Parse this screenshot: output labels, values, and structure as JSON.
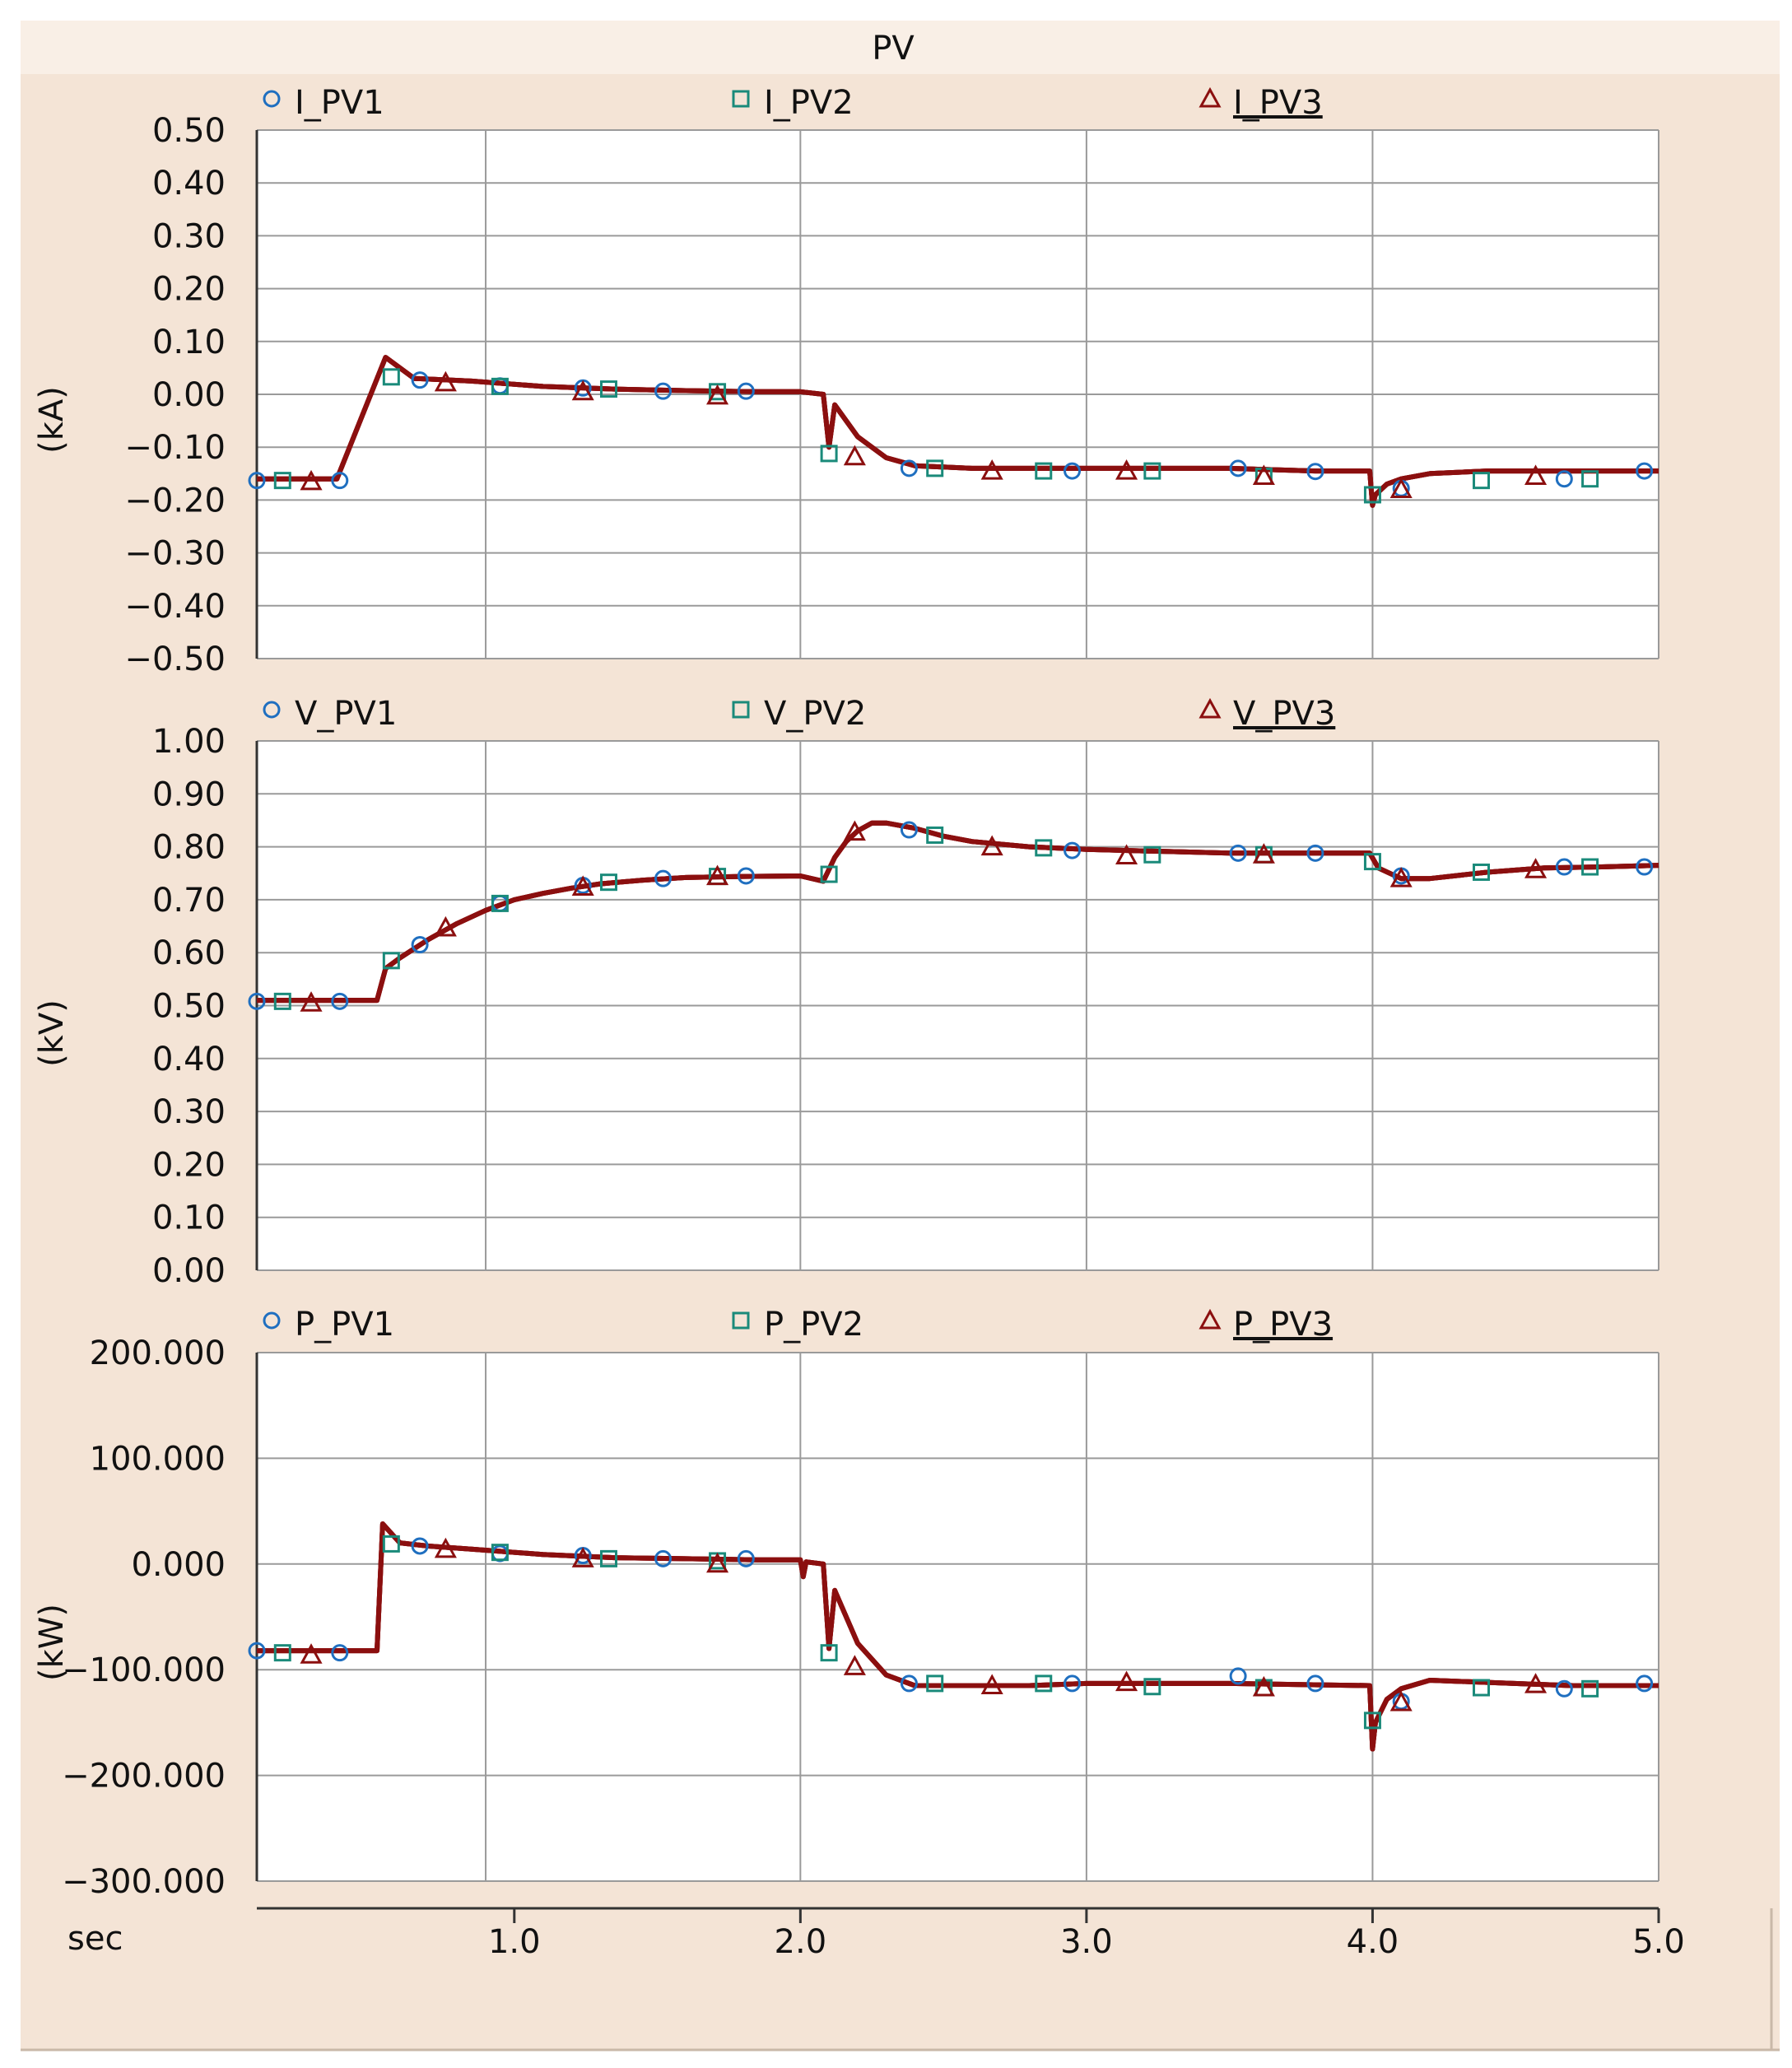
{
  "window": {
    "title": "PV",
    "x_axis_unit": "sec",
    "background": "#f4e4d6",
    "title_bar_color": "#f9efe6",
    "plot_background": "#ffffff",
    "grid_color": "#9a9a9a",
    "line_color": "#8b0f0f"
  },
  "chart_data": [
    {
      "type": "line",
      "id": "current",
      "ylabel": "(kA)",
      "ylim": [
        -0.5,
        0.5
      ],
      "yticks": [
        0.5,
        0.4,
        0.3,
        0.2,
        0.1,
        0.0,
        -0.1,
        -0.2,
        -0.3,
        -0.4,
        -0.5
      ],
      "ytick_labels": [
        "0.50",
        "0.40",
        "0.30",
        "0.20",
        "0.10",
        "0.00",
        "−0.10",
        "−0.20",
        "−0.30",
        "−0.40",
        "−0.50"
      ],
      "xlim": [
        0.1,
        5.0
      ],
      "grid": true,
      "legend_position": "top",
      "series": [
        {
          "name": "I_PV1",
          "marker": "circle",
          "color": "#1f6fc0",
          "x": [
            0.1,
            0.38,
            0.55,
            0.65,
            0.85,
            1.1,
            1.35,
            1.6,
            1.85,
            2.0,
            2.08,
            2.1,
            2.12,
            2.2,
            2.3,
            2.4,
            2.6,
            2.8,
            3.0,
            3.5,
            3.8,
            3.99,
            4.0,
            4.01,
            4.05,
            4.1,
            4.2,
            4.4,
            4.7,
            5.0
          ],
          "y": [
            -0.16,
            -0.16,
            0.07,
            0.03,
            0.025,
            0.015,
            0.01,
            0.007,
            0.005,
            0.005,
            0.0,
            -0.1,
            -0.02,
            -0.08,
            -0.12,
            -0.135,
            -0.14,
            -0.14,
            -0.14,
            -0.14,
            -0.145,
            -0.145,
            -0.21,
            -0.19,
            -0.17,
            -0.16,
            -0.15,
            -0.145,
            -0.145,
            -0.145
          ],
          "marker_x": [
            0.1,
            0.39,
            0.67,
            0.95,
            1.24,
            1.52,
            1.81,
            2.38,
            2.95,
            3.53,
            3.8,
            4.1,
            4.67,
            4.95
          ],
          "marker_y": [
            -0.163,
            -0.163,
            0.027,
            0.016,
            0.012,
            0.006,
            0.006,
            -0.14,
            -0.145,
            -0.14,
            -0.146,
            -0.178,
            -0.16,
            -0.145
          ]
        },
        {
          "name": "I_PV2",
          "marker": "square",
          "color": "#1a8a7a",
          "x": [
            0.1,
            0.38,
            0.55,
            0.65,
            0.85,
            1.1,
            1.35,
            1.6,
            1.85,
            2.0,
            2.08,
            2.1,
            2.12,
            2.2,
            2.3,
            2.4,
            2.6,
            2.8,
            3.0,
            3.5,
            3.8,
            3.99,
            4.0,
            4.01,
            4.05,
            4.1,
            4.2,
            4.4,
            4.7,
            5.0
          ],
          "y": [
            -0.16,
            -0.16,
            0.07,
            0.03,
            0.025,
            0.015,
            0.01,
            0.007,
            0.005,
            0.005,
            0.0,
            -0.1,
            -0.02,
            -0.08,
            -0.12,
            -0.135,
            -0.14,
            -0.14,
            -0.14,
            -0.14,
            -0.145,
            -0.145,
            -0.21,
            -0.19,
            -0.17,
            -0.16,
            -0.15,
            -0.145,
            -0.145,
            -0.145
          ],
          "marker_x": [
            0.19,
            0.57,
            0.95,
            1.33,
            1.71,
            2.1,
            2.47,
            2.85,
            3.23,
            3.62,
            4.0,
            4.38,
            4.76
          ],
          "marker_y": [
            -0.163,
            0.033,
            0.015,
            0.01,
            0.005,
            -0.112,
            -0.14,
            -0.145,
            -0.145,
            -0.155,
            -0.19,
            -0.163,
            -0.16
          ]
        },
        {
          "name": "I_PV3",
          "marker": "triangle",
          "color": "#8b0f0f",
          "x": [
            0.1,
            0.38,
            0.55,
            0.65,
            0.85,
            1.1,
            1.35,
            1.6,
            1.85,
            2.0,
            2.08,
            2.1,
            2.12,
            2.2,
            2.3,
            2.4,
            2.6,
            2.8,
            3.0,
            3.5,
            3.8,
            3.99,
            4.0,
            4.01,
            4.05,
            4.1,
            4.2,
            4.4,
            4.7,
            5.0
          ],
          "y": [
            -0.16,
            -0.16,
            0.07,
            0.03,
            0.025,
            0.015,
            0.01,
            0.007,
            0.005,
            0.005,
            0.0,
            -0.1,
            -0.02,
            -0.08,
            -0.12,
            -0.135,
            -0.14,
            -0.14,
            -0.14,
            -0.14,
            -0.145,
            -0.145,
            -0.21,
            -0.19,
            -0.17,
            -0.16,
            -0.15,
            -0.145,
            -0.145,
            -0.145
          ],
          "marker_x": [
            0.29,
            0.76,
            1.24,
            1.71,
            2.19,
            2.67,
            3.14,
            3.62,
            4.1,
            4.57
          ],
          "marker_y": [
            -0.165,
            0.022,
            0.005,
            -0.003,
            -0.118,
            -0.145,
            -0.145,
            -0.155,
            -0.18,
            -0.155
          ]
        }
      ]
    },
    {
      "type": "line",
      "id": "voltage",
      "ylabel": "(kV)",
      "ylim": [
        0.0,
        1.0
      ],
      "yticks": [
        1.0,
        0.9,
        0.8,
        0.7,
        0.6,
        0.5,
        0.4,
        0.3,
        0.2,
        0.1,
        0.0
      ],
      "ytick_labels": [
        "1.00",
        "0.90",
        "0.80",
        "0.70",
        "0.60",
        "0.50",
        "0.40",
        "0.30",
        "0.20",
        "0.10",
        "0.00"
      ],
      "xlim": [
        0.1,
        5.0
      ],
      "grid": true,
      "legend_position": "top",
      "series": [
        {
          "name": "V_PV1",
          "marker": "circle",
          "color": "#1f6fc0",
          "x": [
            0.1,
            0.52,
            0.55,
            0.6,
            0.7,
            0.8,
            0.9,
            1.0,
            1.1,
            1.2,
            1.3,
            1.45,
            1.6,
            1.8,
            2.0,
            2.08,
            2.12,
            2.16,
            2.2,
            2.25,
            2.3,
            2.4,
            2.5,
            2.6,
            2.8,
            3.0,
            3.5,
            3.99,
            4.02,
            4.1,
            4.2,
            4.4,
            4.6,
            4.8,
            5.0
          ],
          "y": [
            0.51,
            0.51,
            0.57,
            0.59,
            0.625,
            0.655,
            0.68,
            0.7,
            0.712,
            0.722,
            0.73,
            0.737,
            0.742,
            0.744,
            0.745,
            0.735,
            0.78,
            0.81,
            0.83,
            0.845,
            0.845,
            0.835,
            0.82,
            0.81,
            0.8,
            0.795,
            0.788,
            0.788,
            0.76,
            0.74,
            0.74,
            0.752,
            0.76,
            0.762,
            0.765
          ],
          "marker_x": [
            0.1,
            0.39,
            0.67,
            0.95,
            1.24,
            1.52,
            1.81,
            2.38,
            2.95,
            3.53,
            3.8,
            4.1,
            4.67,
            4.95
          ],
          "marker_y": [
            0.508,
            0.508,
            0.615,
            0.693,
            0.727,
            0.74,
            0.745,
            0.832,
            0.793,
            0.788,
            0.788,
            0.745,
            0.762,
            0.762
          ]
        },
        {
          "name": "V_PV2",
          "marker": "square",
          "color": "#1a8a7a",
          "x": [
            0.1,
            0.52,
            0.55,
            0.6,
            0.7,
            0.8,
            0.9,
            1.0,
            1.1,
            1.2,
            1.3,
            1.45,
            1.6,
            1.8,
            2.0,
            2.08,
            2.12,
            2.16,
            2.2,
            2.25,
            2.3,
            2.4,
            2.5,
            2.6,
            2.8,
            3.0,
            3.5,
            3.99,
            4.02,
            4.1,
            4.2,
            4.4,
            4.6,
            4.8,
            5.0
          ],
          "y": [
            0.51,
            0.51,
            0.57,
            0.59,
            0.625,
            0.655,
            0.68,
            0.7,
            0.712,
            0.722,
            0.73,
            0.737,
            0.742,
            0.744,
            0.745,
            0.735,
            0.78,
            0.81,
            0.83,
            0.845,
            0.845,
            0.835,
            0.82,
            0.81,
            0.8,
            0.795,
            0.788,
            0.788,
            0.76,
            0.74,
            0.74,
            0.752,
            0.76,
            0.762,
            0.765
          ],
          "marker_x": [
            0.19,
            0.57,
            0.95,
            1.33,
            1.71,
            2.1,
            2.47,
            2.85,
            3.23,
            3.62,
            4.0,
            4.38,
            4.76
          ],
          "marker_y": [
            0.508,
            0.585,
            0.693,
            0.733,
            0.744,
            0.748,
            0.822,
            0.798,
            0.785,
            0.785,
            0.772,
            0.752,
            0.762
          ]
        },
        {
          "name": "V_PV3",
          "marker": "triangle",
          "color": "#8b0f0f",
          "x": [
            0.1,
            0.52,
            0.55,
            0.6,
            0.7,
            0.8,
            0.9,
            1.0,
            1.1,
            1.2,
            1.3,
            1.45,
            1.6,
            1.8,
            2.0,
            2.08,
            2.12,
            2.16,
            2.2,
            2.25,
            2.3,
            2.4,
            2.5,
            2.6,
            2.8,
            3.0,
            3.5,
            3.99,
            4.02,
            4.1,
            4.2,
            4.4,
            4.6,
            4.8,
            5.0
          ],
          "y": [
            0.51,
            0.51,
            0.57,
            0.59,
            0.625,
            0.655,
            0.68,
            0.7,
            0.712,
            0.722,
            0.73,
            0.737,
            0.742,
            0.744,
            0.745,
            0.735,
            0.78,
            0.81,
            0.83,
            0.845,
            0.845,
            0.835,
            0.82,
            0.81,
            0.8,
            0.795,
            0.788,
            0.788,
            0.76,
            0.74,
            0.74,
            0.752,
            0.76,
            0.762,
            0.765
          ],
          "marker_x": [
            0.29,
            0.76,
            1.24,
            1.71,
            2.19,
            2.67,
            3.14,
            3.62,
            4.1,
            4.57
          ],
          "marker_y": [
            0.505,
            0.647,
            0.724,
            0.744,
            0.828,
            0.8,
            0.783,
            0.785,
            0.74,
            0.757
          ]
        }
      ]
    },
    {
      "type": "line",
      "id": "power",
      "ylabel": "(kW)",
      "ylim": [
        -300.0,
        200.0
      ],
      "yticks": [
        200.0,
        100.0,
        0.0,
        -100.0,
        -200.0,
        -300.0
      ],
      "ytick_labels": [
        "200.000",
        "100.000",
        "0.000",
        "−100.000",
        "−200.000",
        "−300.000"
      ],
      "xlim": [
        0.1,
        5.0
      ],
      "grid": true,
      "legend_position": "top",
      "series": [
        {
          "name": "P_PV1",
          "marker": "circle",
          "color": "#1f6fc0",
          "x": [
            0.1,
            0.52,
            0.54,
            0.6,
            0.7,
            0.85,
            1.1,
            1.35,
            1.6,
            1.85,
            2.0,
            2.01,
            2.02,
            2.08,
            2.1,
            2.12,
            2.2,
            2.3,
            2.4,
            2.6,
            2.8,
            3.0,
            3.5,
            3.99,
            4.0,
            4.01,
            4.05,
            4.1,
            4.2,
            4.4,
            4.7,
            5.0
          ],
          "y": [
            -82,
            -82,
            38,
            20,
            17,
            14,
            9,
            6,
            5,
            4,
            4,
            -12,
            2,
            0,
            -80,
            -25,
            -75,
            -105,
            -115,
            -115,
            -115,
            -113,
            -113,
            -115,
            -175,
            -150,
            -128,
            -118,
            -110,
            -112,
            -115,
            -115
          ],
          "marker_x": [
            0.1,
            0.39,
            0.67,
            0.95,
            1.24,
            1.52,
            1.81,
            2.38,
            2.95,
            3.53,
            3.8,
            4.1,
            4.67,
            4.95
          ],
          "marker_y": [
            -82,
            -84,
            17,
            10,
            8,
            5,
            5,
            -113,
            -113,
            -106,
            -113,
            -130,
            -118,
            -113
          ]
        },
        {
          "name": "P_PV2",
          "marker": "square",
          "color": "#1a8a7a",
          "x": [
            0.1,
            0.52,
            0.54,
            0.6,
            0.7,
            0.85,
            1.1,
            1.35,
            1.6,
            1.85,
            2.0,
            2.01,
            2.02,
            2.08,
            2.1,
            2.12,
            2.2,
            2.3,
            2.4,
            2.6,
            2.8,
            3.0,
            3.5,
            3.99,
            4.0,
            4.01,
            4.05,
            4.1,
            4.2,
            4.4,
            4.7,
            5.0
          ],
          "y": [
            -82,
            -82,
            38,
            20,
            17,
            14,
            9,
            6,
            5,
            4,
            4,
            -12,
            2,
            0,
            -80,
            -25,
            -75,
            -105,
            -115,
            -115,
            -115,
            -113,
            -113,
            -115,
            -175,
            -150,
            -128,
            -118,
            -110,
            -112,
            -115,
            -115
          ],
          "marker_x": [
            0.19,
            0.57,
            0.95,
            1.33,
            1.71,
            2.1,
            2.47,
            2.85,
            3.23,
            3.62,
            4.0,
            4.38,
            4.76
          ],
          "marker_y": [
            -84,
            19,
            11,
            5,
            3,
            -84,
            -113,
            -113,
            -116,
            -117,
            -148,
            -117,
            -118
          ]
        },
        {
          "name": "P_PV3",
          "marker": "triangle",
          "color": "#8b0f0f",
          "x": [
            0.1,
            0.52,
            0.54,
            0.6,
            0.7,
            0.85,
            1.1,
            1.35,
            1.6,
            1.85,
            2.0,
            2.01,
            2.02,
            2.08,
            2.1,
            2.12,
            2.2,
            2.3,
            2.4,
            2.6,
            2.8,
            3.0,
            3.5,
            3.99,
            4.0,
            4.01,
            4.05,
            4.1,
            4.2,
            4.4,
            4.7,
            5.0
          ],
          "y": [
            -82,
            -82,
            38,
            20,
            17,
            14,
            9,
            6,
            5,
            4,
            4,
            -12,
            2,
            0,
            -80,
            -25,
            -75,
            -105,
            -115,
            -115,
            -115,
            -113,
            -113,
            -115,
            -175,
            -150,
            -128,
            -118,
            -110,
            -112,
            -115,
            -115
          ],
          "marker_x": [
            0.29,
            0.76,
            1.24,
            1.71,
            2.19,
            2.67,
            3.14,
            3.62,
            4.1,
            4.57
          ],
          "marker_y": [
            -86,
            14,
            5,
            0,
            -97,
            -115,
            -112,
            -117,
            -131,
            -114
          ]
        }
      ]
    }
  ],
  "x_axis": {
    "ticks": [
      1.0,
      2.0,
      3.0,
      4.0,
      5.0
    ],
    "tick_labels": [
      "1.0",
      "2.0",
      "3.0",
      "4.0",
      "5.0"
    ]
  }
}
